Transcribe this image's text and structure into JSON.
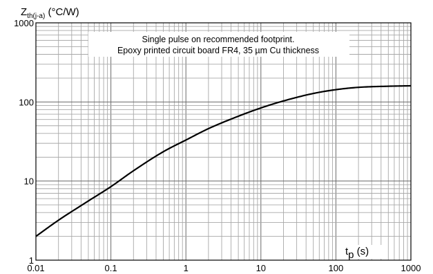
{
  "chart_data": {
    "type": "line",
    "scale": "log-log",
    "grid": true,
    "ylabel": {
      "main": "Z",
      "subscript": "th(j-a)",
      "unit": " (°C/W)"
    },
    "xlabel": {
      "main": "t",
      "subscript": "p",
      "unit": " (s)"
    },
    "annotation": [
      "Single pulse on recommended footprint.",
      "Epoxy printed circuit board FR4, 35 µm Cu thickness"
    ],
    "xlim": [
      0.01,
      1000
    ],
    "ylim": [
      1,
      1000
    ],
    "xticks": [
      {
        "value": 0.01,
        "label": "0.01"
      },
      {
        "value": 0.1,
        "label": "0.1"
      },
      {
        "value": 1,
        "label": "1"
      },
      {
        "value": 10,
        "label": "10"
      },
      {
        "value": 100,
        "label": "100"
      },
      {
        "value": 1000,
        "label": "1000"
      }
    ],
    "yticks": [
      {
        "value": 1,
        "label": "1"
      },
      {
        "value": 10,
        "label": "10"
      },
      {
        "value": 100,
        "label": "100"
      },
      {
        "value": 1000,
        "label": "1000"
      }
    ],
    "series": [
      {
        "color": "#000000",
        "x": [
          0.01,
          0.02,
          0.05,
          0.1,
          0.2,
          0.5,
          1,
          2,
          5,
          10,
          20,
          50,
          100,
          200,
          500,
          1000
        ],
        "y": [
          2.0,
          3.2,
          5.6,
          8.5,
          13.5,
          23.5,
          33,
          46,
          66,
          84,
          103,
          128,
          143,
          153,
          158,
          160
        ]
      }
    ]
  }
}
